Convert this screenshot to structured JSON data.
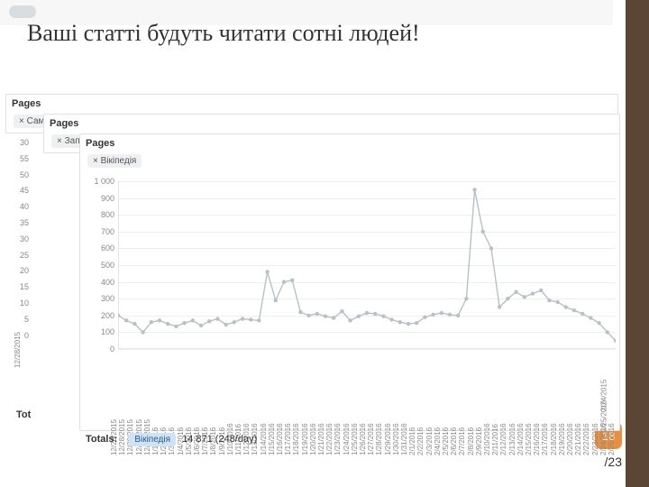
{
  "title": "Ваші статті будуть читати сотні людей!",
  "asterisk": "*",
  "page_current": "18",
  "page_total": "/23",
  "panels": {
    "back1_label": "Pages",
    "back1_tag": "× Сам",
    "back2_label": "Pages",
    "back2_tag": "× Заперечення СНІДу",
    "front_label": "Pages",
    "front_tag": "× Вікіпедія"
  },
  "back_axis_a": [
    "30",
    "55",
    "50",
    "45",
    "40",
    "35",
    "30",
    "25",
    "20",
    "15",
    "10",
    "5",
    "0"
  ],
  "back_date_a": "12/28/2015",
  "back_totals_a": "Tot",
  "chart": {
    "type": "line",
    "ylim": [
      0,
      1000
    ],
    "yticks": [
      0,
      100,
      200,
      300,
      400,
      500,
      600,
      700,
      800,
      900,
      1000
    ],
    "ytick_labels": [
      "0",
      "100",
      "200",
      "300",
      "400",
      "500",
      "600",
      "700",
      "800",
      "900",
      "1 000"
    ],
    "x_labels": [
      "12/26/2015",
      "12/28/2015",
      "12/29/2015",
      "12/30/2015",
      "12/31/2015",
      "1/1/2016",
      "1/2/2016",
      "1/3/2016",
      "1/4/2016",
      "1/5/2016",
      "1/6/2016",
      "1/7/2016",
      "1/8/2016",
      "1/9/2016",
      "1/10/2016",
      "1/11/2016",
      "1/12/2016",
      "1/13/2016",
      "1/14/2016",
      "1/15/2016",
      "1/16/2016",
      "1/17/2016",
      "1/18/2016",
      "1/19/2016",
      "1/20/2016",
      "1/21/2016",
      "1/22/2016",
      "1/23/2016",
      "1/24/2016",
      "1/25/2016",
      "1/26/2016",
      "1/27/2016",
      "1/28/2016",
      "1/29/2016",
      "1/30/2016",
      "1/31/2016",
      "2/1/2016",
      "2/2/2016",
      "2/3/2016",
      "2/4/2016",
      "2/5/2016",
      "2/6/2016",
      "2/7/2016",
      "2/8/2016",
      "2/9/2016",
      "2/10/2016",
      "2/11/2016",
      "2/12/2016",
      "2/13/2016",
      "2/14/2016",
      "2/15/2016",
      "2/16/2016",
      "2/17/2016",
      "2/18/2016",
      "2/19/2016",
      "2/20/2016",
      "2/21/2016",
      "2/22/2016",
      "2/23/2016",
      "2/24/2016",
      "2/25/2016"
    ],
    "values": [
      200,
      170,
      150,
      100,
      160,
      170,
      150,
      135,
      155,
      170,
      140,
      165,
      180,
      145,
      160,
      180,
      175,
      170,
      460,
      290,
      400,
      410,
      220,
      200,
      210,
      195,
      185,
      225,
      170,
      195,
      215,
      210,
      195,
      175,
      160,
      150,
      155,
      190,
      205,
      215,
      205,
      200,
      300,
      950,
      700,
      600,
      250,
      300,
      340,
      310,
      330,
      350,
      290,
      280,
      250,
      230,
      210,
      185,
      155,
      100,
      50
    ],
    "line_color": "#b9c0c7",
    "marker_color": "#b9c0c7",
    "grid_color": "#eeeeee",
    "background": "#ffffff",
    "marker_radius": 2.2,
    "line_width": 1.4
  },
  "totals": {
    "label": "Totals:",
    "tag": "Вікіпедія",
    "value": "14 871 (248/day)"
  },
  "side_dates": [
    "2/24/2015",
    "2/25/2016"
  ]
}
